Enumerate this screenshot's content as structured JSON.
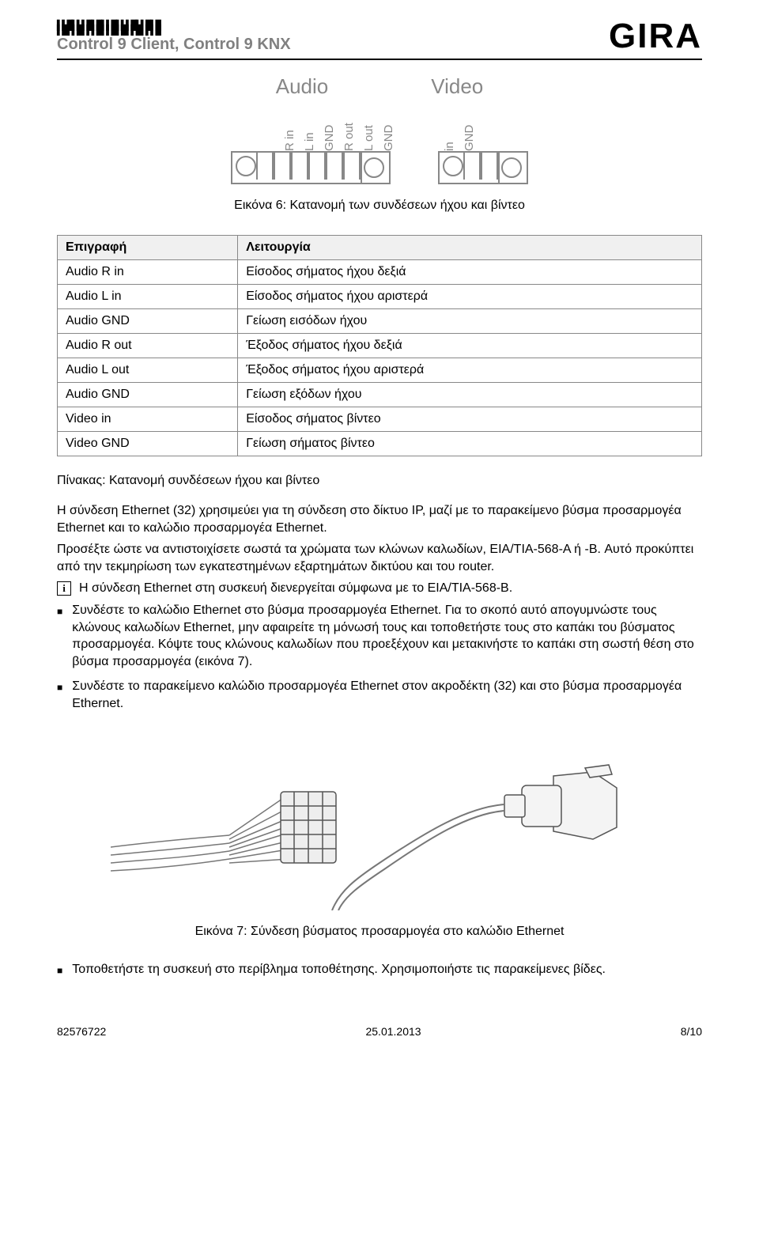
{
  "header": {
    "doc_title": "Control 9 Client, Control 9 KNX",
    "brand": "GIRA"
  },
  "figure6": {
    "audio_label": "Audio",
    "video_label": "Video",
    "audio_pins": [
      "R in",
      "L in",
      "GND",
      "R out",
      "L out",
      "GND"
    ],
    "video_pins": [
      "in",
      "GND"
    ],
    "caption": "Εικόνα 6: Κατανομή των συνδέσεων ήχου και βίντεο"
  },
  "signal_table": {
    "headers": [
      "Επιγραφή",
      "Λειτουργία"
    ],
    "rows": [
      [
        "Audio R in",
        "Είσοδος σήματος ήχου δεξιά"
      ],
      [
        "Audio L in",
        "Είσοδος σήματος ήχου αριστερά"
      ],
      [
        "Audio GND",
        "Γείωση εισόδων ήχου"
      ],
      [
        "Audio R out",
        "Έξοδος σήματος ήχου δεξιά"
      ],
      [
        "Audio L out",
        "Έξοδος σήματος ήχου αριστερά"
      ],
      [
        "Audio GND",
        "Γείωση εξόδων ήχου"
      ],
      [
        "Video in",
        "Είσοδος σήματος βίντεο"
      ],
      [
        "Video GND",
        "Γείωση σήματος βίντεο"
      ]
    ],
    "caption": "Πίνακας: Κατανομή συνδέσεων ήχου και βίντεο"
  },
  "paragraphs": {
    "p1": "Η σύνδεση Ethernet (32) χρησιμεύει για τη σύνδεση στο δίκτυο IP, μαζί με το παρακείμενο βύσμα προσαρμογέα Ethernet και το καλώδιο προσαρμογέα Ethernet.",
    "p2": "Προσέξτε ώστε να αντιστοιχίσετε σωστά τα χρώματα των κλώνων καλωδίων, EIA/TIA-568-A ή -B. Αυτό προκύπτει από την τεκμηρίωση των εγκατεστημένων εξαρτημάτων δικτύου και του router."
  },
  "info_note": "Η σύνδεση Ethernet στη συσκευή διενεργείται σύμφωνα με το EIA/TIA-568-B.",
  "bullets_a": [
    "Συνδέστε το καλώδιο Ethernet στο βύσμα προσαρμογέα Ethernet. Για το σκοπό αυτό απογυμνώστε τους κλώνους καλωδίων Ethernet, μην αφαιρείτε τη μόνωσή τους και τοποθετήστε τους στο καπάκι του βύσματος προσαρμογέα. Κόψτε τους κλώνους καλωδίων που προεξέχουν και μετακινήστε το καπάκι στη σωστή θέση στο βύσμα προσαρμογέα (εικόνα 7).",
    "Συνδέστε το παρακείμενο καλώδιο προσαρμογέα Ethernet στον ακροδέκτη (32) και στο βύσμα προσαρμογέα Ethernet."
  ],
  "figure7": {
    "caption": "Εικόνα 7: Σύνδεση βύσματος προσαρμογέα στο καλώδιο Ethernet"
  },
  "bullets_b": [
    "Τοποθετήστε τη συσκευή στο περίβλημα τοποθέτησης. Χρησιμοποιήστε τις παρακείμενες βίδες."
  ],
  "footer": {
    "doc_number": "82576722",
    "date": "25.01.2013",
    "page": "8/10"
  },
  "colors": {
    "text_gray": "#808080",
    "line_gray": "#888888",
    "bg": "#ffffff",
    "header_bg": "#f0f0f0"
  }
}
